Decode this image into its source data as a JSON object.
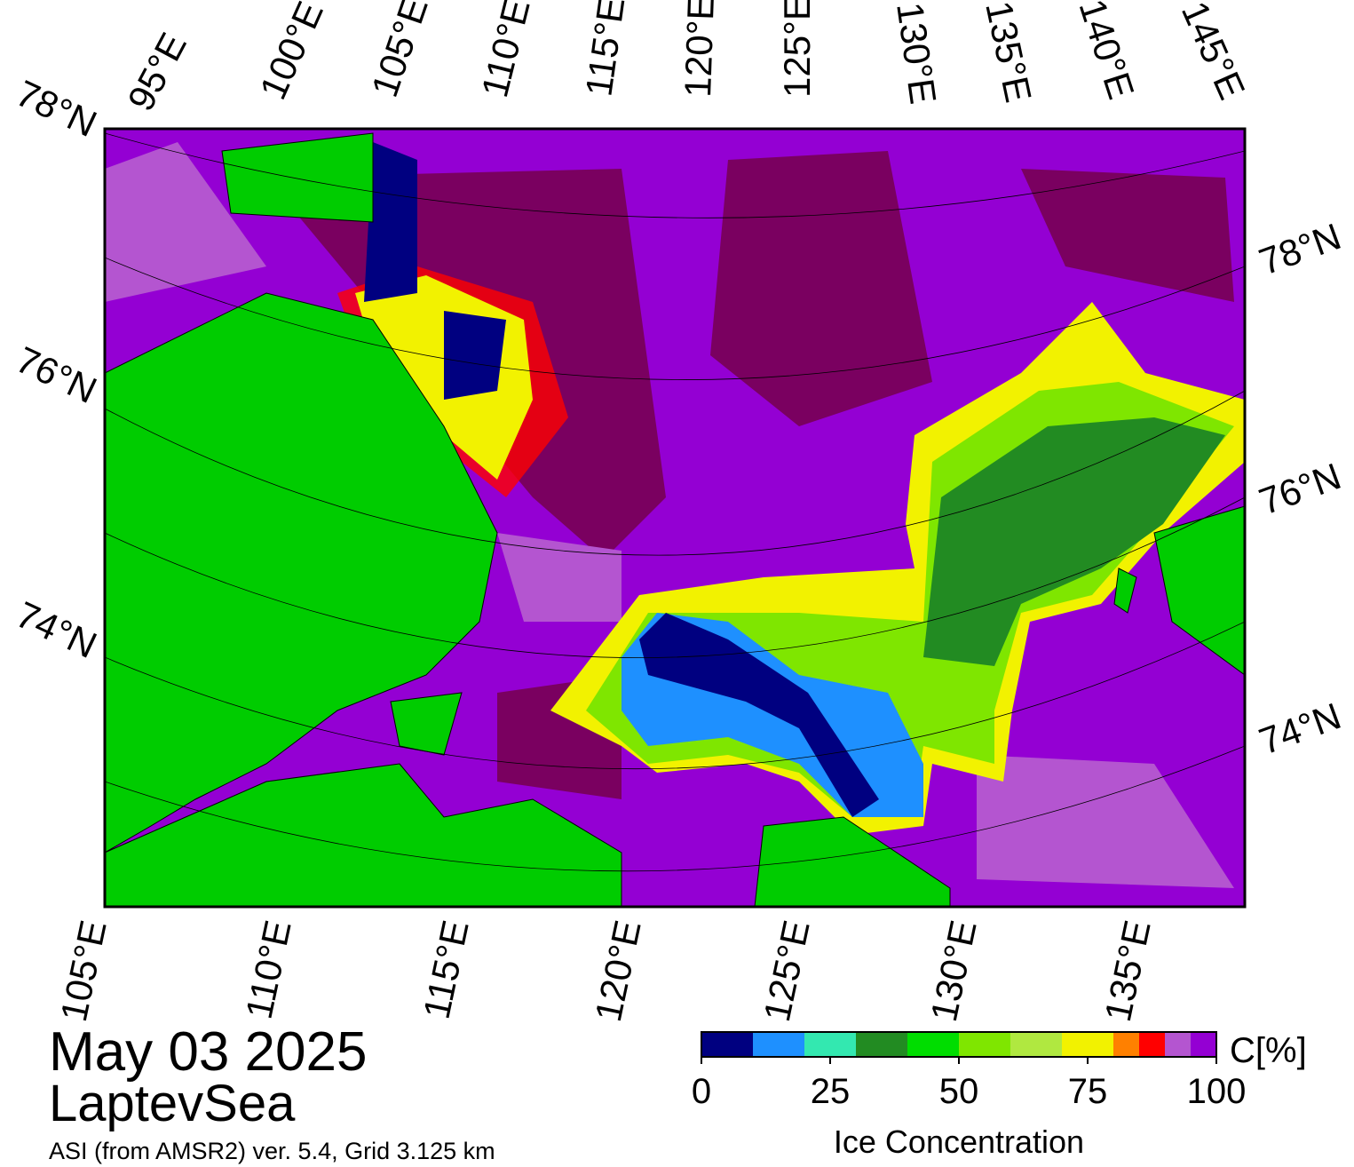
{
  "map": {
    "top_labels": [
      "95°E",
      "100°E",
      "105°E",
      "110°E",
      "115°E",
      "120°E",
      "125°E",
      "130°E",
      "135°E",
      "140°E",
      "145°E"
    ],
    "left_labels": [
      "78°N",
      "76°N",
      "74°N"
    ],
    "right_labels": [
      "78°N",
      "76°N",
      "74°N"
    ],
    "bottom_labels": [
      "105°E",
      "110°E",
      "115°E",
      "120°E",
      "125°E",
      "130°E",
      "135°E"
    ]
  },
  "caption": {
    "date": "May 03 2025",
    "region": "LaptevSea",
    "source": "ASI (from AMSR2) ver. 5.4,  Grid 3.125 km"
  },
  "colorbar": {
    "title": "Ice Concentration",
    "unit": "C[%]",
    "lim": [
      0,
      100
    ],
    "ticks": [
      0,
      25,
      50,
      75,
      100
    ],
    "bounds": [
      0,
      10,
      20,
      30,
      40,
      50,
      60,
      70,
      80,
      85,
      90,
      95,
      100
    ],
    "colors": [
      "#000080",
      "#1e90ff",
      "#33e8b0",
      "#228b22",
      "#00dd00",
      "#7fe600",
      "#b0e840",
      "#f2f200",
      "#ff8000",
      "#ff0000",
      "#b455d0",
      "#9400d3"
    ]
  }
}
